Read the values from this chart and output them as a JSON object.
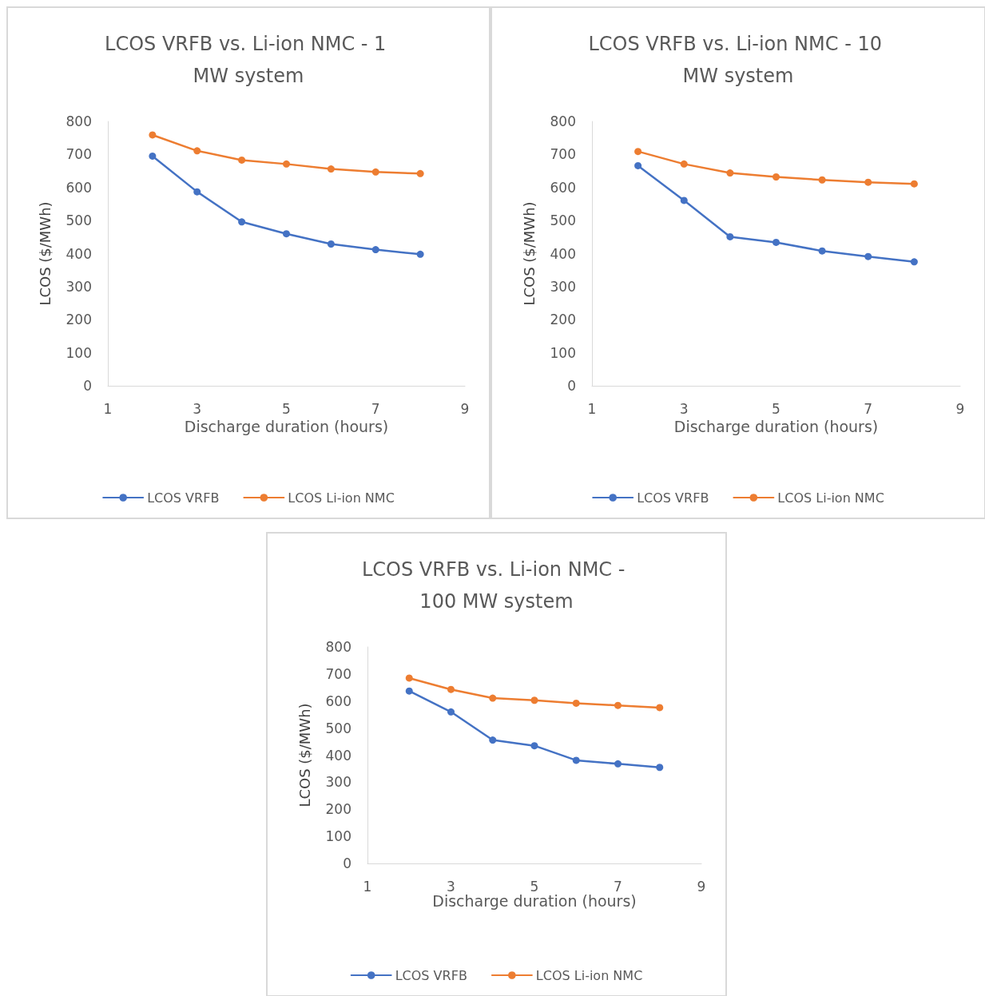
{
  "chart_data": [
    {
      "type": "line",
      "title": "LCOS VRFB vs. Li-ion NMC - 1 MW system",
      "xlabel": "Discharge duration (hours)",
      "ylabel": "LCOS ($/MWh)",
      "x": [
        2,
        3,
        4,
        5,
        6,
        7,
        8
      ],
      "xlim": [
        1,
        9
      ],
      "xticks": [
        1,
        3,
        5,
        7,
        9
      ],
      "ylim": [
        0,
        800
      ],
      "yticks": [
        0,
        100,
        200,
        300,
        400,
        500,
        600,
        700,
        800
      ],
      "grid": false,
      "legend": "bottom",
      "marker": "circle",
      "line_style": "solid",
      "series": [
        {
          "name": "LCOS VRFB",
          "color": "#4472c4",
          "values": [
            695,
            587,
            496,
            460,
            429,
            412,
            398
          ]
        },
        {
          "name": "LCOS Li-ion NMC",
          "color": "#ed7d31",
          "values": [
            759,
            711,
            683,
            671,
            656,
            647,
            642
          ]
        }
      ]
    },
    {
      "type": "line",
      "title": "LCOS VRFB vs. Li-ion NMC - 10 MW system",
      "xlabel": "Discharge duration (hours)",
      "ylabel": "LCOS ($/MWh)",
      "x": [
        2,
        3,
        4,
        5,
        6,
        7,
        8
      ],
      "xlim": [
        1,
        9
      ],
      "xticks": [
        1,
        3,
        5,
        7,
        9
      ],
      "ylim": [
        0,
        800
      ],
      "yticks": [
        0,
        100,
        200,
        300,
        400,
        500,
        600,
        700,
        800
      ],
      "grid": false,
      "legend": "bottom",
      "marker": "circle",
      "line_style": "solid",
      "series": [
        {
          "name": "LCOS VRFB",
          "color": "#4472c4",
          "values": [
            666,
            561,
            451,
            434,
            408,
            391,
            375
          ]
        },
        {
          "name": "LCOS Li-ion NMC",
          "color": "#ed7d31",
          "values": [
            709,
            671,
            644,
            632,
            623,
            616,
            611
          ]
        }
      ]
    },
    {
      "type": "line",
      "title": "LCOS VRFB vs. Li-ion NMC - 100 MW system",
      "xlabel": "Discharge duration (hours)",
      "ylabel": "LCOS ($/MWh)",
      "x": [
        2,
        3,
        4,
        5,
        6,
        7,
        8
      ],
      "xlim": [
        1,
        9
      ],
      "xticks": [
        1,
        3,
        5,
        7,
        9
      ],
      "ylim": [
        0,
        800
      ],
      "yticks": [
        0,
        100,
        200,
        300,
        400,
        500,
        600,
        700,
        800
      ],
      "grid": false,
      "legend": "bottom",
      "marker": "circle",
      "line_style": "solid",
      "series": [
        {
          "name": "LCOS VRFB",
          "color": "#4472c4",
          "values": [
            637,
            560,
            456,
            435,
            381,
            368,
            355
          ]
        },
        {
          "name": "LCOS Li-ion NMC",
          "color": "#ed7d31",
          "values": [
            685,
            643,
            611,
            603,
            592,
            584,
            576
          ]
        }
      ]
    }
  ]
}
